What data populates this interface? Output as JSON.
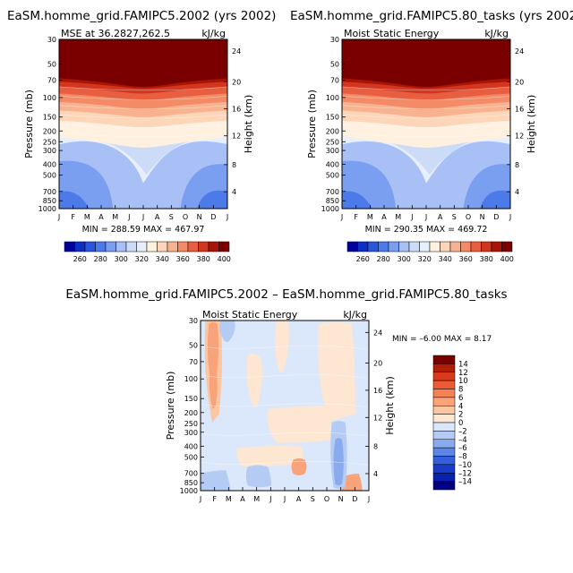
{
  "figure": {
    "type": "contour-panel-figure"
  },
  "chart_data": [
    {
      "type": "heatmap",
      "title": "EaSM.homme_grid.FAMIPC5.2002 (yrs 2002)",
      "subtitle_left": "MSE at 36.2827,262.5",
      "subtitle_right": "kJ/kg",
      "ylabel": "Pressure (mb)",
      "ylabel_right": "Height (km)",
      "x_ticks": [
        "J",
        "F",
        "M",
        "A",
        "M",
        "J",
        "J",
        "A",
        "S",
        "O",
        "N",
        "D",
        "J"
      ],
      "y_ticks": [
        "30",
        "50",
        "70",
        "100",
        "150",
        "200",
        "250",
        "300",
        "400",
        "500",
        "700",
        "850",
        "1000"
      ],
      "y_ticks_right": [
        "24",
        "20",
        "16",
        "12",
        "8",
        "4"
      ],
      "stats": "MIN = 288.59 MAX = 467.97",
      "min": 288.59,
      "max": 467.97,
      "colorbar": {
        "orientation": "horizontal",
        "labels": [
          "260",
          "280",
          "300",
          "320",
          "340",
          "360",
          "380",
          "400"
        ],
        "colors": [
          "#00009b",
          "#0d2fc4",
          "#2a56db",
          "#4c7ae8",
          "#7b9ff0",
          "#a8c0f5",
          "#ccdcf8",
          "#e6effb",
          "#fff0e0",
          "#fdd5b8",
          "#f9b28f",
          "#f38b66",
          "#e75f40",
          "#d2361f",
          "#a81507",
          "#7a0000"
        ]
      }
    },
    {
      "type": "heatmap",
      "title": "EaSM.homme_grid.FAMIPC5.80_tasks (yrs 2002)",
      "subtitle_left": "Moist Static Energy",
      "subtitle_right": "kJ/kg",
      "ylabel": "Pressure (mb)",
      "ylabel_right": "Height (km)",
      "x_ticks": [
        "J",
        "F",
        "M",
        "A",
        "M",
        "J",
        "J",
        "A",
        "S",
        "O",
        "N",
        "D",
        "J"
      ],
      "y_ticks": [
        "30",
        "50",
        "70",
        "100",
        "150",
        "200",
        "250",
        "300",
        "400",
        "500",
        "700",
        "850",
        "1000"
      ],
      "y_ticks_right": [
        "24",
        "20",
        "16",
        "12",
        "8",
        "4"
      ],
      "stats": "MIN = 290.35 MAX = 469.72",
      "min": 290.35,
      "max": 469.72,
      "colorbar": {
        "orientation": "horizontal",
        "labels": [
          "260",
          "280",
          "300",
          "320",
          "340",
          "360",
          "380",
          "400"
        ]
      }
    },
    {
      "type": "heatmap",
      "title": "EaSM.homme_grid.FAMIPC5.2002 – EaSM.homme_grid.FAMIPC5.80_tasks",
      "subtitle_left": "Moist Static Energy",
      "subtitle_right": "kJ/kg",
      "ylabel": "Pressure (mb)",
      "ylabel_right": "Height (km)",
      "x_ticks": [
        "J",
        "F",
        "M",
        "A",
        "M",
        "J",
        "J",
        "A",
        "S",
        "O",
        "N",
        "D",
        "J"
      ],
      "y_ticks": [
        "30",
        "50",
        "70",
        "100",
        "150",
        "200",
        "250",
        "300",
        "400",
        "500",
        "700",
        "850",
        "1000"
      ],
      "y_ticks_right": [
        "24",
        "20",
        "16",
        "12",
        "8",
        "4"
      ],
      "stats": "MIN =   –6.00 MAX =   8.17",
      "min": -6.0,
      "max": 8.17,
      "colorbar": {
        "orientation": "vertical",
        "labels": [
          "14",
          "12",
          "10",
          "8",
          "6",
          "4",
          "2",
          "0",
          "–2",
          "–4",
          "–6",
          "–8",
          "–10",
          "–12",
          "–14"
        ],
        "colors": [
          "#7a0000",
          "#b31c07",
          "#d83a1c",
          "#ee5a34",
          "#f58256",
          "#f8a37a",
          "#fbc6a2",
          "#fde6d2",
          "#dbe7fa",
          "#b4cbf4",
          "#8aaaee",
          "#5c86e6",
          "#335fdc",
          "#1a3bc9",
          "#0820ac",
          "#000080"
        ]
      }
    }
  ]
}
